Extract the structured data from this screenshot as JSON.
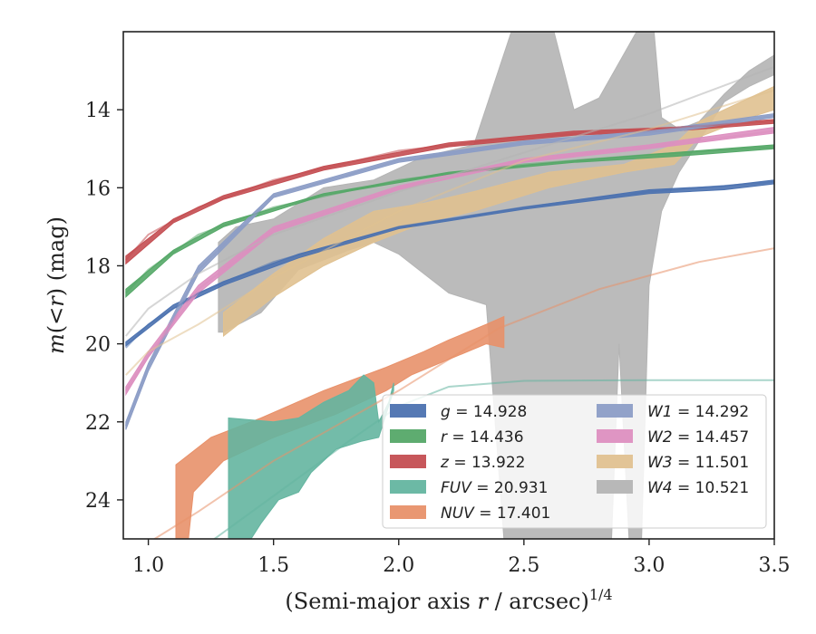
{
  "chart_data": {
    "type": "area",
    "xlabel": "(Semi-major axis r / arcsec)^1/4",
    "ylabel": "m(<r) (mag)",
    "xlim": [
      0.9,
      3.5
    ],
    "ylim": [
      25,
      12.0
    ],
    "y_inverted": true,
    "x_ticks": [
      "1.0",
      "1.5",
      "2.0",
      "2.5",
      "3.0",
      "3.5"
    ],
    "x_tick_values": [
      1.0,
      1.5,
      2.0,
      2.5,
      3.0,
      3.5
    ],
    "y_ticks": [
      "14",
      "16",
      "18",
      "20",
      "22",
      "24"
    ],
    "y_tick_values": [
      14,
      16,
      18,
      20,
      22,
      24
    ],
    "grid": false,
    "legend_position": "lower-right",
    "series": [
      {
        "name": "g = 14.928",
        "label_italic": "g",
        "label_value": "14.928",
        "color": "#4c72b0",
        "curve": [
          [
            0.91,
            20.1
          ],
          [
            1.0,
            19.5
          ],
          [
            1.2,
            18.7
          ],
          [
            1.5,
            17.9
          ],
          [
            2.0,
            17.0
          ],
          [
            2.5,
            16.5
          ],
          [
            3.0,
            16.1
          ],
          [
            3.5,
            15.85
          ]
        ],
        "band_upper": [
          [
            0.91,
            19.95
          ],
          [
            1.1,
            19.0
          ],
          [
            1.3,
            18.4
          ],
          [
            1.6,
            17.7
          ],
          [
            2.0,
            17.0
          ],
          [
            2.5,
            16.5
          ],
          [
            3.0,
            16.05
          ],
          [
            3.3,
            15.95
          ],
          [
            3.5,
            15.8
          ]
        ],
        "band_lower": [
          [
            3.5,
            15.9
          ],
          [
            3.3,
            16.05
          ],
          [
            3.0,
            16.15
          ],
          [
            2.5,
            16.55
          ],
          [
            2.0,
            17.05
          ],
          [
            1.6,
            17.8
          ],
          [
            1.3,
            18.5
          ],
          [
            1.1,
            19.1
          ],
          [
            0.91,
            20.05
          ]
        ]
      },
      {
        "name": "r = 14.436",
        "label_italic": "r",
        "label_value": "14.436",
        "color": "#55a868",
        "curve": [
          [
            0.91,
            18.7
          ],
          [
            1.0,
            18.1
          ],
          [
            1.2,
            17.2
          ],
          [
            1.5,
            16.5
          ],
          [
            2.0,
            15.8
          ],
          [
            2.5,
            15.4
          ],
          [
            3.0,
            15.15
          ],
          [
            3.5,
            14.95
          ]
        ],
        "band_upper": [
          [
            0.91,
            18.6
          ],
          [
            1.1,
            17.6
          ],
          [
            1.3,
            16.9
          ],
          [
            1.7,
            16.15
          ],
          [
            2.2,
            15.6
          ],
          [
            2.7,
            15.3
          ],
          [
            3.1,
            15.1
          ],
          [
            3.5,
            14.9
          ]
        ],
        "band_lower": [
          [
            3.5,
            15.0
          ],
          [
            3.1,
            15.2
          ],
          [
            2.7,
            15.35
          ],
          [
            2.2,
            15.65
          ],
          [
            1.7,
            16.2
          ],
          [
            1.3,
            17.0
          ],
          [
            1.1,
            17.7
          ],
          [
            0.91,
            18.8
          ]
        ]
      },
      {
        "name": "z = 13.922",
        "label_italic": "z",
        "label_value": "13.922",
        "color": "#c44e52",
        "curve": [
          [
            0.91,
            17.85
          ],
          [
            1.0,
            17.2
          ],
          [
            1.2,
            16.5
          ],
          [
            1.5,
            15.8
          ],
          [
            2.0,
            15.05
          ],
          [
            2.5,
            14.7
          ],
          [
            3.0,
            14.5
          ],
          [
            3.5,
            14.3
          ]
        ],
        "band_upper": [
          [
            0.91,
            17.75
          ],
          [
            1.1,
            16.8
          ],
          [
            1.3,
            16.2
          ],
          [
            1.7,
            15.45
          ],
          [
            2.2,
            14.85
          ],
          [
            2.7,
            14.55
          ],
          [
            3.1,
            14.45
          ],
          [
            3.5,
            14.25
          ]
        ],
        "band_lower": [
          [
            3.5,
            14.35
          ],
          [
            3.1,
            14.55
          ],
          [
            2.7,
            14.65
          ],
          [
            2.2,
            14.95
          ],
          [
            1.7,
            15.55
          ],
          [
            1.3,
            16.3
          ],
          [
            1.1,
            16.9
          ],
          [
            0.91,
            17.95
          ]
        ]
      },
      {
        "name": "FUV = 20.931",
        "label_italic": "FUV",
        "label_value": "20.931",
        "color": "#64b5a0",
        "curve": [
          [
            1.0,
            26.5
          ],
          [
            1.2,
            25.3
          ],
          [
            1.5,
            23.9
          ],
          [
            1.8,
            22.5
          ],
          [
            2.0,
            21.6
          ],
          [
            2.2,
            21.1
          ],
          [
            2.5,
            20.95
          ],
          [
            3.0,
            20.93
          ],
          [
            3.5,
            20.93
          ]
        ],
        "band_upper": [
          [
            1.32,
            21.9
          ],
          [
            1.5,
            22.0
          ],
          [
            1.6,
            21.9
          ],
          [
            1.7,
            21.5
          ],
          [
            1.8,
            21.2
          ],
          [
            1.86,
            20.8
          ],
          [
            1.9,
            21.0
          ],
          [
            1.92,
            22.0
          ],
          [
            1.96,
            21.5
          ],
          [
            1.98,
            21.0
          ]
        ],
        "band_lower": [
          [
            1.98,
            21.2
          ],
          [
            1.92,
            22.4
          ],
          [
            1.85,
            22.5
          ],
          [
            1.75,
            22.7
          ],
          [
            1.65,
            23.3
          ],
          [
            1.6,
            23.8
          ],
          [
            1.52,
            24.0
          ],
          [
            1.45,
            24.6
          ],
          [
            1.4,
            25.1
          ],
          [
            1.32,
            25.1
          ]
        ]
      },
      {
        "name": "NUV = 17.401",
        "label_italic": "NUV",
        "label_value": "17.401",
        "color": "#e8916a",
        "curve": [
          [
            1.0,
            25.1
          ],
          [
            1.2,
            24.3
          ],
          [
            1.5,
            23.0
          ],
          [
            2.0,
            21.2
          ],
          [
            2.4,
            19.6
          ],
          [
            2.8,
            18.6
          ],
          [
            3.2,
            17.9
          ],
          [
            3.5,
            17.55
          ]
        ],
        "band_upper": [
          [
            1.11,
            23.1
          ],
          [
            1.25,
            22.4
          ],
          [
            1.45,
            21.9
          ],
          [
            1.7,
            21.2
          ],
          [
            1.95,
            20.6
          ],
          [
            2.1,
            20.2
          ],
          [
            2.2,
            19.9
          ],
          [
            2.35,
            19.5
          ],
          [
            2.42,
            19.3
          ]
        ],
        "band_lower": [
          [
            2.42,
            20.1
          ],
          [
            2.35,
            20.0
          ],
          [
            2.2,
            20.4
          ],
          [
            2.05,
            20.8
          ],
          [
            1.95,
            21.2
          ],
          [
            1.75,
            21.8
          ],
          [
            1.5,
            22.4
          ],
          [
            1.3,
            23.0
          ],
          [
            1.18,
            23.8
          ],
          [
            1.16,
            25.0
          ],
          [
            1.11,
            25.0
          ]
        ]
      },
      {
        "name": "W1 = 14.292",
        "label_italic": "W1",
        "label_value": "14.292",
        "color": "#8c9dc6",
        "curve": [
          [
            0.91,
            22.1
          ],
          [
            1.0,
            20.6
          ],
          [
            1.2,
            18.1
          ],
          [
            1.5,
            16.2
          ],
          [
            2.0,
            15.3
          ],
          [
            2.5,
            14.85
          ],
          [
            3.0,
            14.6
          ],
          [
            3.5,
            14.15
          ]
        ],
        "band_upper": [
          [
            0.91,
            22.0
          ],
          [
            1.0,
            20.5
          ],
          [
            1.2,
            18.0
          ],
          [
            1.5,
            16.15
          ],
          [
            2.0,
            15.25
          ],
          [
            2.5,
            14.8
          ],
          [
            3.0,
            14.55
          ],
          [
            3.5,
            14.1
          ]
        ],
        "band_lower": [
          [
            3.5,
            14.2
          ],
          [
            3.0,
            14.65
          ],
          [
            2.5,
            14.9
          ],
          [
            2.0,
            15.35
          ],
          [
            1.5,
            16.25
          ],
          [
            1.2,
            18.2
          ],
          [
            1.0,
            20.7
          ],
          [
            0.91,
            22.2
          ]
        ]
      },
      {
        "name": "W2 = 14.457",
        "label_italic": "W2",
        "label_value": "14.457",
        "color": "#dd8fc0",
        "curve": [
          [
            0.91,
            21.2
          ],
          [
            1.0,
            20.3
          ],
          [
            1.2,
            18.6
          ],
          [
            1.5,
            17.1
          ],
          [
            2.0,
            16.0
          ],
          [
            2.5,
            15.3
          ],
          [
            3.0,
            14.95
          ],
          [
            3.5,
            14.55
          ]
        ],
        "band_upper": [
          [
            0.91,
            21.1
          ],
          [
            1.0,
            20.2
          ],
          [
            1.2,
            18.5
          ],
          [
            1.5,
            17.0
          ],
          [
            2.0,
            15.95
          ],
          [
            2.5,
            15.25
          ],
          [
            3.0,
            14.9
          ],
          [
            3.5,
            14.45
          ]
        ],
        "band_lower": [
          [
            3.5,
            14.6
          ],
          [
            3.0,
            15.0
          ],
          [
            2.5,
            15.35
          ],
          [
            2.0,
            16.05
          ],
          [
            1.5,
            17.15
          ],
          [
            1.2,
            18.7
          ],
          [
            1.0,
            20.35
          ],
          [
            0.91,
            21.3
          ]
        ]
      },
      {
        "name": "W3 = 11.501",
        "label_italic": "W3",
        "label_value": "11.501",
        "color": "#e0c190",
        "curve": [
          [
            0.91,
            20.8
          ],
          [
            1.0,
            20.2
          ],
          [
            1.2,
            19.5
          ],
          [
            1.5,
            18.3
          ],
          [
            2.0,
            16.6
          ],
          [
            2.5,
            15.3
          ],
          [
            3.0,
            14.5
          ],
          [
            3.5,
            13.5
          ]
        ],
        "band_upper": [
          [
            1.3,
            19.2
          ],
          [
            1.5,
            18.2
          ],
          [
            1.7,
            17.3
          ],
          [
            1.9,
            16.6
          ],
          [
            2.1,
            16.4
          ],
          [
            2.3,
            16.1
          ],
          [
            2.6,
            15.6
          ],
          [
            2.9,
            15.4
          ],
          [
            3.1,
            14.9
          ],
          [
            3.2,
            14.3
          ],
          [
            3.4,
            13.7
          ],
          [
            3.5,
            13.4
          ]
        ],
        "band_lower": [
          [
            3.5,
            14.0
          ],
          [
            3.4,
            14.2
          ],
          [
            3.2,
            14.7
          ],
          [
            3.1,
            15.4
          ],
          [
            2.9,
            15.6
          ],
          [
            2.6,
            16.0
          ],
          [
            2.3,
            16.6
          ],
          [
            2.1,
            16.9
          ],
          [
            1.9,
            17.4
          ],
          [
            1.7,
            18.0
          ],
          [
            1.5,
            18.8
          ],
          [
            1.3,
            19.8
          ]
        ]
      },
      {
        "name": "W4 = 10.521",
        "label_italic": "W4",
        "label_value": "10.521",
        "color": "#b4b4b4",
        "curve": [
          [
            0.91,
            19.8
          ],
          [
            1.0,
            19.1
          ],
          [
            1.2,
            18.2
          ],
          [
            1.5,
            17.2
          ],
          [
            2.0,
            16.1
          ],
          [
            2.5,
            15.1
          ],
          [
            3.0,
            14.1
          ],
          [
            3.5,
            12.9
          ]
        ],
        "band_upper": [
          [
            1.28,
            17.4
          ],
          [
            1.35,
            17.0
          ],
          [
            1.5,
            16.8
          ],
          [
            1.7,
            16.0
          ],
          [
            1.9,
            15.8
          ],
          [
            2.1,
            15.2
          ],
          [
            2.3,
            14.9
          ],
          [
            2.45,
            12.0
          ],
          [
            2.62,
            12.0
          ],
          [
            2.7,
            14.0
          ],
          [
            2.8,
            13.7
          ],
          [
            2.95,
            12.0
          ],
          [
            3.02,
            12.0
          ],
          [
            3.05,
            14.2
          ],
          [
            3.12,
            14.5
          ],
          [
            3.2,
            14.3
          ],
          [
            3.3,
            13.6
          ],
          [
            3.4,
            13.0
          ],
          [
            3.5,
            12.6
          ]
        ],
        "band_lower": [
          [
            3.5,
            13.1
          ],
          [
            3.4,
            13.4
          ],
          [
            3.3,
            13.8
          ],
          [
            3.2,
            14.8
          ],
          [
            3.12,
            15.6
          ],
          [
            3.05,
            16.6
          ],
          [
            3.0,
            18.5
          ],
          [
            2.97,
            25.0
          ],
          [
            2.92,
            25.0
          ],
          [
            2.88,
            20.0
          ],
          [
            2.85,
            25.0
          ],
          [
            2.42,
            25.0
          ],
          [
            2.35,
            19.0
          ],
          [
            2.2,
            18.7
          ],
          [
            2.1,
            18.2
          ],
          [
            2.0,
            17.7
          ],
          [
            1.9,
            17.4
          ],
          [
            1.8,
            17.6
          ],
          [
            1.6,
            18.1
          ],
          [
            1.45,
            19.2
          ],
          [
            1.3,
            19.7
          ],
          [
            1.28,
            19.7
          ]
        ]
      }
    ]
  },
  "xlabel_parts": {
    "prefix": "(Semi-major axis ",
    "italic": "r",
    "suffix": " / arcsec)",
    "sup": "1/4"
  },
  "ylabel_parts": {
    "italic_m": "m",
    "paren_open": "(<",
    "italic_r": "r",
    "paren_close": ")",
    "unit": " (mag)"
  }
}
